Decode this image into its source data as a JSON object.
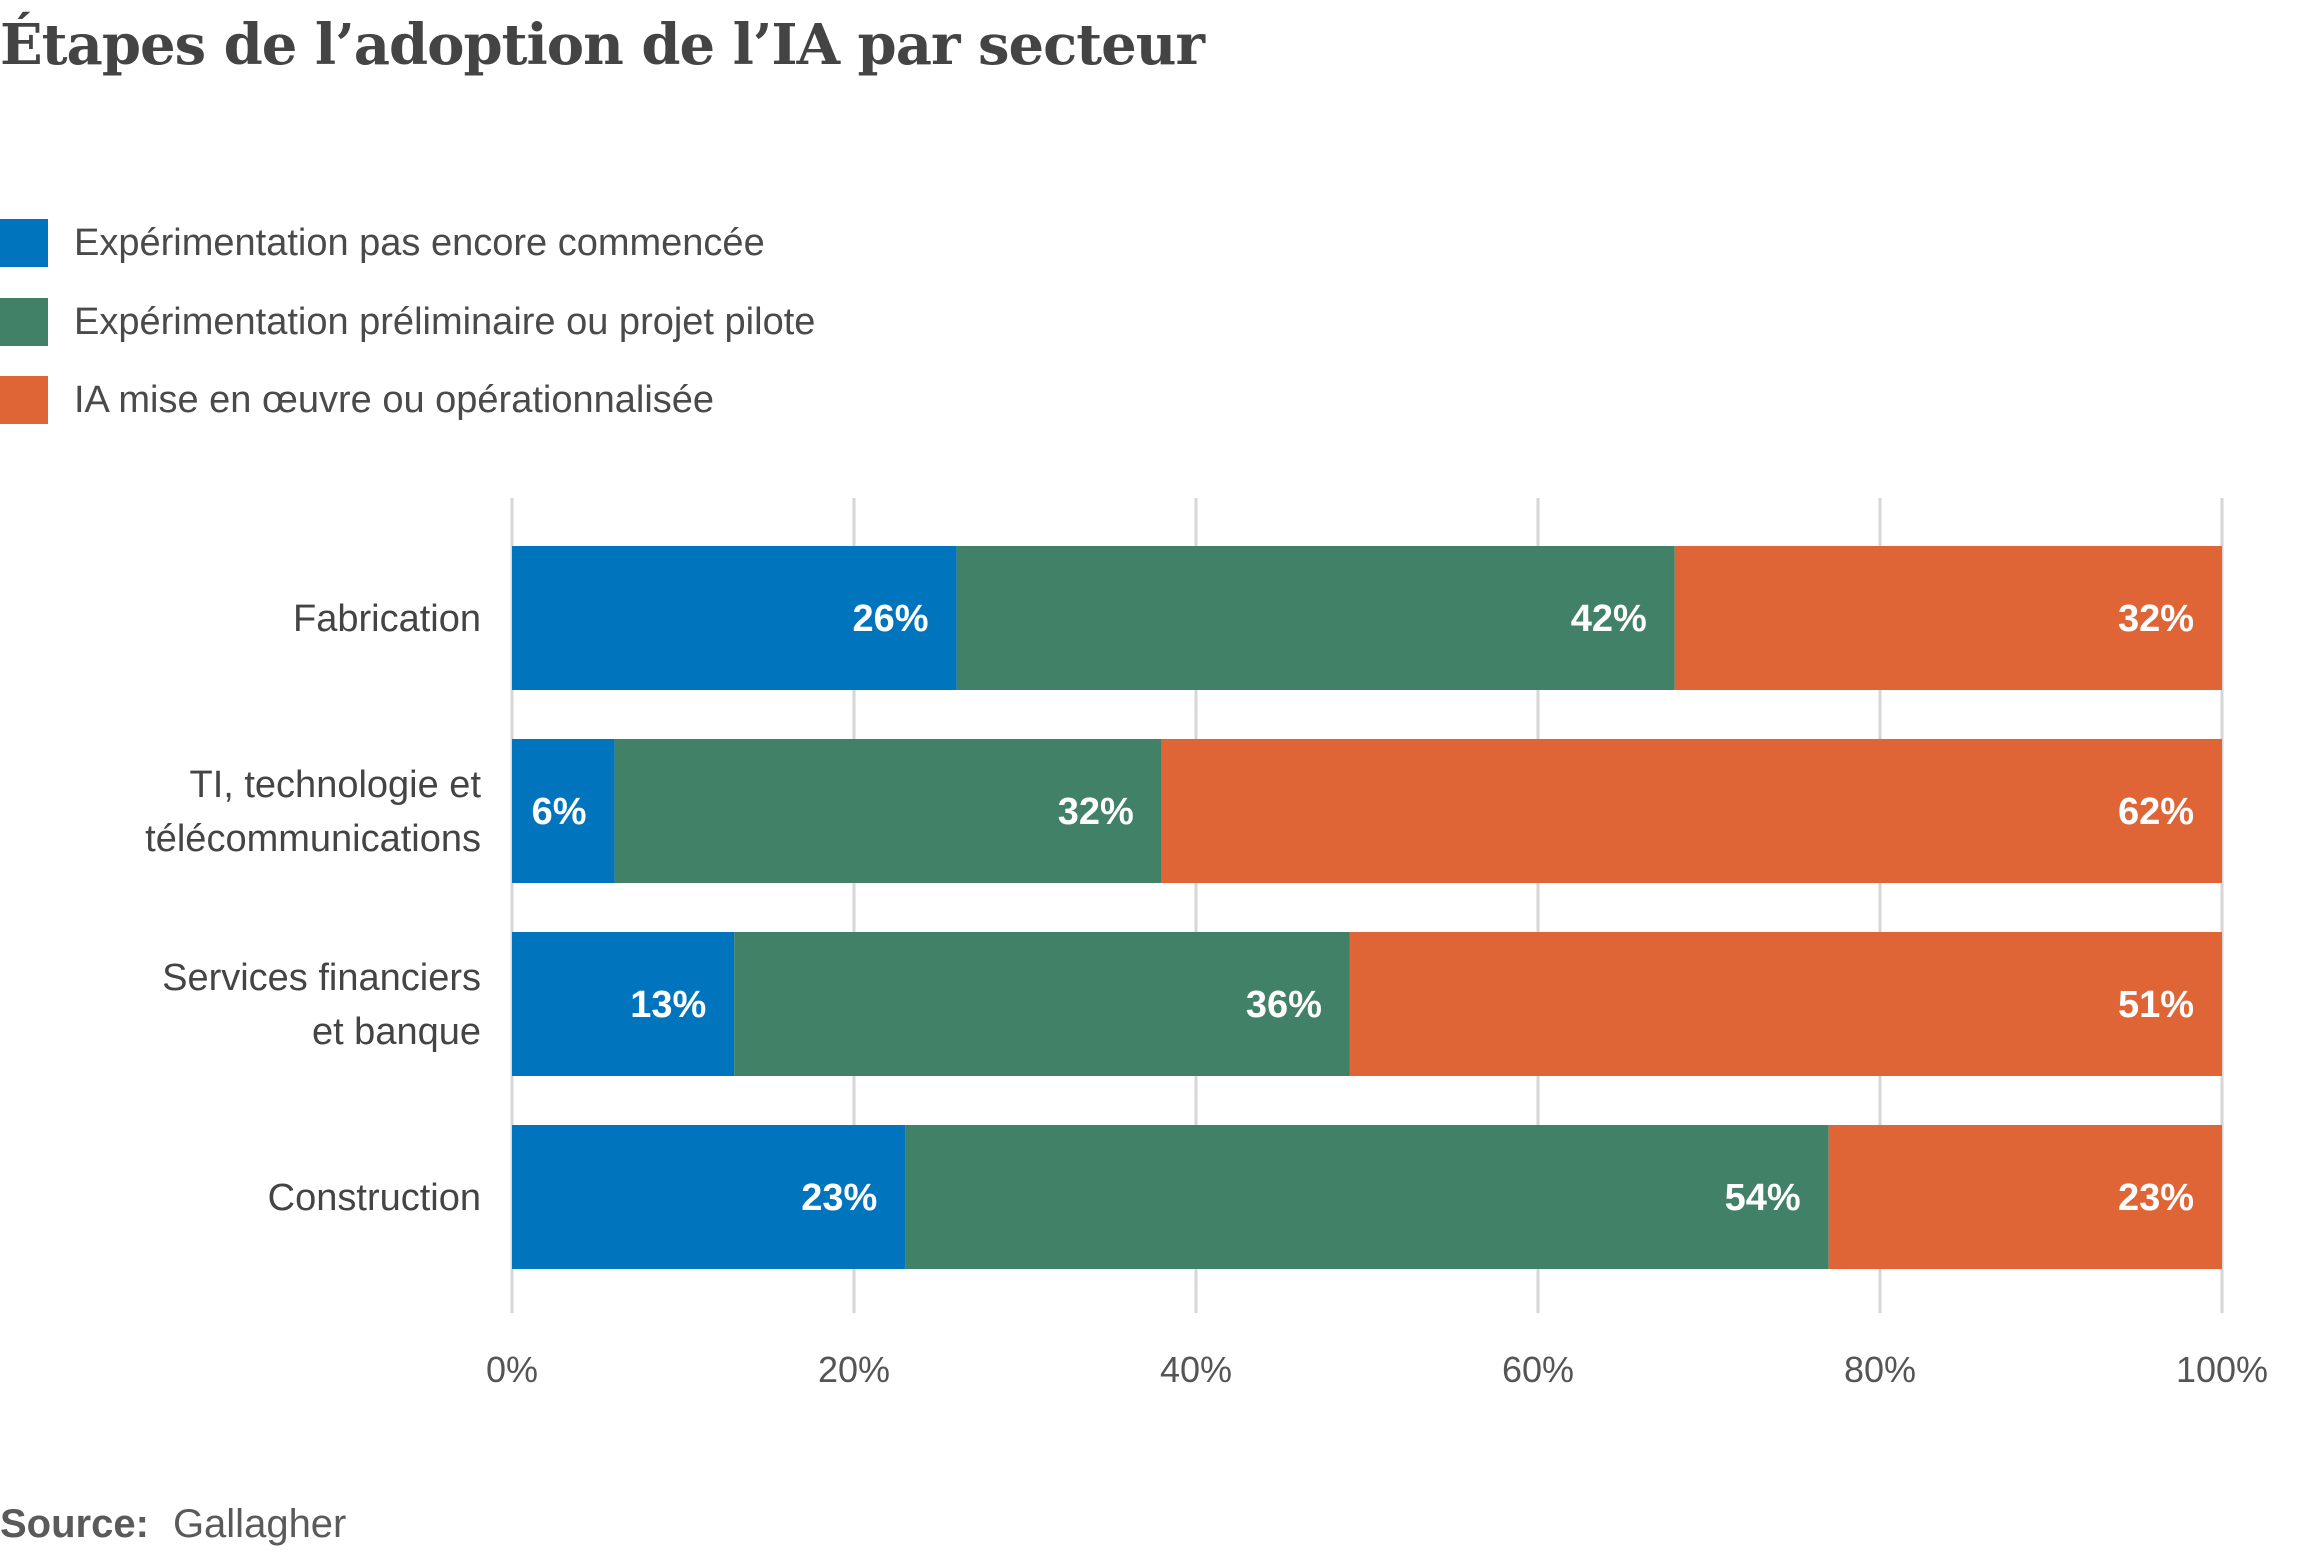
{
  "chart_data": {
    "type": "bar",
    "orientation": "horizontal",
    "stacked": true,
    "title": "Étapes de l’adoption de l’IA par secteur",
    "xlabel": "",
    "ylabel": "",
    "xlim": [
      0,
      100
    ],
    "x_ticks": [
      "0%",
      "20%",
      "40%",
      "60%",
      "80%",
      "100%"
    ],
    "x_tick_values": [
      0,
      20,
      40,
      60,
      80,
      100
    ],
    "grid": true,
    "legend_position": "top-left",
    "categories": [
      [
        "Fabrication"
      ],
      [
        "TI, technologie et",
        "télécommunications"
      ],
      [
        "Services financiers",
        "et banque"
      ],
      [
        "Construction"
      ]
    ],
    "series": [
      {
        "name": "Expérimentation pas encore commencée",
        "color": "#0074BC",
        "values": [
          26,
          6,
          13,
          23
        ]
      },
      {
        "name": "Expérimentation préliminaire ou projet pilote",
        "color": "#408167",
        "values": [
          42,
          32,
          36,
          54
        ]
      },
      {
        "name": "IA mise en œuvre ou opérationnalisée",
        "color": "#E06536",
        "values": [
          32,
          62,
          51,
          23
        ]
      }
    ],
    "value_suffix": "%"
  },
  "source": {
    "label": "Source:",
    "value": "Gallagher"
  }
}
